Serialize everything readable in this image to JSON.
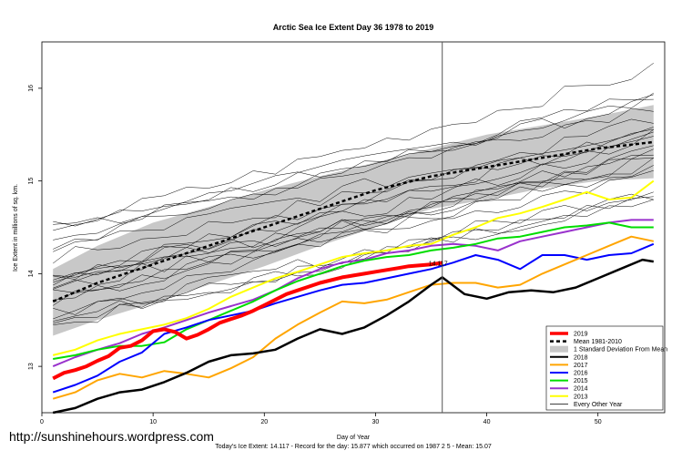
{
  "chart_data": {
    "type": "line",
    "title": "Arctic Sea Ice Extent Day 36 1978 to 2019",
    "xlabel": "Day of Year",
    "ylabel": "Ice Extent in millions of sq. km.",
    "xlim": [
      0,
      56
    ],
    "ylim": [
      12.5,
      16.5
    ],
    "xticks": [
      0,
      10,
      20,
      30,
      40,
      50
    ],
    "yticks": [
      13,
      14,
      15,
      16
    ],
    "current_day": 36,
    "current_value_label": "14.117",
    "legend_position": "bottom-right",
    "series": [
      {
        "name": "2019",
        "color": "#ff0000",
        "width": 4,
        "values": [
          [
            1,
            12.87
          ],
          [
            2,
            12.93
          ],
          [
            3,
            12.96
          ],
          [
            4,
            13.0
          ],
          [
            5,
            13.06
          ],
          [
            6,
            13.11
          ],
          [
            7,
            13.2
          ],
          [
            8,
            13.22
          ],
          [
            9,
            13.28
          ],
          [
            10,
            13.38
          ],
          [
            11,
            13.4
          ],
          [
            12,
            13.37
          ],
          [
            13,
            13.3
          ],
          [
            14,
            13.34
          ],
          [
            15,
            13.4
          ],
          [
            16,
            13.47
          ],
          [
            17,
            13.51
          ],
          [
            18,
            13.55
          ],
          [
            19,
            13.6
          ],
          [
            20,
            13.66
          ],
          [
            21,
            13.72
          ],
          [
            22,
            13.78
          ],
          [
            23,
            13.82
          ],
          [
            24,
            13.86
          ],
          [
            25,
            13.9
          ],
          [
            26,
            13.93
          ],
          [
            27,
            13.96
          ],
          [
            28,
            13.98
          ],
          [
            29,
            14.0
          ],
          [
            30,
            14.02
          ],
          [
            31,
            14.04
          ],
          [
            32,
            14.06
          ],
          [
            33,
            14.08
          ],
          [
            34,
            14.09
          ],
          [
            35,
            14.1
          ],
          [
            36,
            14.117
          ]
        ]
      },
      {
        "name": "Mean 1981-2010",
        "color": "#000000",
        "width": 2.5,
        "dash": "4 3",
        "values": [
          [
            1,
            13.7
          ],
          [
            5,
            13.9
          ],
          [
            10,
            14.1
          ],
          [
            15,
            14.3
          ],
          [
            20,
            14.5
          ],
          [
            25,
            14.7
          ],
          [
            30,
            14.9
          ],
          [
            35,
            15.05
          ],
          [
            40,
            15.15
          ],
          [
            45,
            15.25
          ],
          [
            50,
            15.35
          ],
          [
            55,
            15.42
          ]
        ]
      },
      {
        "name": "2018",
        "color": "#000000",
        "width": 2.5,
        "values": [
          [
            1,
            12.5
          ],
          [
            3,
            12.55
          ],
          [
            5,
            12.65
          ],
          [
            7,
            12.72
          ],
          [
            9,
            12.75
          ],
          [
            11,
            12.83
          ],
          [
            13,
            12.93
          ],
          [
            15,
            13.05
          ],
          [
            17,
            13.12
          ],
          [
            19,
            13.14
          ],
          [
            21,
            13.18
          ],
          [
            23,
            13.3
          ],
          [
            25,
            13.4
          ],
          [
            27,
            13.35
          ],
          [
            29,
            13.42
          ],
          [
            31,
            13.55
          ],
          [
            33,
            13.7
          ],
          [
            35,
            13.88
          ],
          [
            36,
            13.96
          ],
          [
            38,
            13.78
          ],
          [
            40,
            13.73
          ],
          [
            42,
            13.8
          ],
          [
            44,
            13.82
          ],
          [
            46,
            13.8
          ],
          [
            48,
            13.85
          ],
          [
            50,
            13.95
          ],
          [
            52,
            14.05
          ],
          [
            54,
            14.15
          ],
          [
            55,
            14.13
          ]
        ]
      },
      {
        "name": "2017",
        "color": "#ffa500",
        "width": 2,
        "values": [
          [
            1,
            12.65
          ],
          [
            3,
            12.72
          ],
          [
            5,
            12.85
          ],
          [
            7,
            12.92
          ],
          [
            9,
            12.88
          ],
          [
            11,
            12.95
          ],
          [
            13,
            12.92
          ],
          [
            15,
            12.88
          ],
          [
            17,
            12.98
          ],
          [
            19,
            13.1
          ],
          [
            21,
            13.3
          ],
          [
            23,
            13.45
          ],
          [
            25,
            13.58
          ],
          [
            27,
            13.7
          ],
          [
            29,
            13.68
          ],
          [
            31,
            13.72
          ],
          [
            33,
            13.8
          ],
          [
            35,
            13.88
          ],
          [
            37,
            13.9
          ],
          [
            39,
            13.9
          ],
          [
            41,
            13.85
          ],
          [
            43,
            13.88
          ],
          [
            45,
            14.0
          ],
          [
            47,
            14.1
          ],
          [
            49,
            14.2
          ],
          [
            51,
            14.3
          ],
          [
            53,
            14.4
          ],
          [
            55,
            14.35
          ]
        ]
      },
      {
        "name": "2016",
        "color": "#0000ff",
        "width": 2,
        "values": [
          [
            1,
            12.72
          ],
          [
            3,
            12.8
          ],
          [
            5,
            12.9
          ],
          [
            7,
            13.05
          ],
          [
            9,
            13.15
          ],
          [
            11,
            13.35
          ],
          [
            13,
            13.42
          ],
          [
            15,
            13.5
          ],
          [
            17,
            13.55
          ],
          [
            19,
            13.6
          ],
          [
            21,
            13.68
          ],
          [
            23,
            13.75
          ],
          [
            25,
            13.82
          ],
          [
            27,
            13.88
          ],
          [
            29,
            13.9
          ],
          [
            31,
            13.95
          ],
          [
            33,
            14.0
          ],
          [
            35,
            14.05
          ],
          [
            37,
            14.12
          ],
          [
            39,
            14.2
          ],
          [
            41,
            14.15
          ],
          [
            43,
            14.05
          ],
          [
            45,
            14.2
          ],
          [
            47,
            14.2
          ],
          [
            49,
            14.15
          ],
          [
            51,
            14.2
          ],
          [
            53,
            14.22
          ],
          [
            55,
            14.32
          ]
        ]
      },
      {
        "name": "2015",
        "color": "#00dd00",
        "width": 2,
        "values": [
          [
            1,
            13.08
          ],
          [
            3,
            13.12
          ],
          [
            5,
            13.18
          ],
          [
            7,
            13.22
          ],
          [
            9,
            13.22
          ],
          [
            11,
            13.26
          ],
          [
            13,
            13.4
          ],
          [
            15,
            13.5
          ],
          [
            17,
            13.6
          ],
          [
            19,
            13.7
          ],
          [
            21,
            13.82
          ],
          [
            23,
            13.92
          ],
          [
            25,
            14.0
          ],
          [
            27,
            14.08
          ],
          [
            29,
            14.14
          ],
          [
            31,
            14.18
          ],
          [
            33,
            14.2
          ],
          [
            35,
            14.25
          ],
          [
            37,
            14.28
          ],
          [
            39,
            14.32
          ],
          [
            41,
            14.38
          ],
          [
            43,
            14.4
          ],
          [
            45,
            14.45
          ],
          [
            47,
            14.5
          ],
          [
            49,
            14.52
          ],
          [
            51,
            14.55
          ],
          [
            53,
            14.5
          ],
          [
            55,
            14.5
          ]
        ]
      },
      {
        "name": "2014",
        "color": "#9932cc",
        "width": 2,
        "values": [
          [
            1,
            13.0
          ],
          [
            3,
            13.1
          ],
          [
            5,
            13.18
          ],
          [
            7,
            13.25
          ],
          [
            9,
            13.35
          ],
          [
            11,
            13.42
          ],
          [
            13,
            13.5
          ],
          [
            15,
            13.58
          ],
          [
            17,
            13.65
          ],
          [
            19,
            13.72
          ],
          [
            21,
            13.82
          ],
          [
            23,
            13.95
          ],
          [
            25,
            14.05
          ],
          [
            27,
            14.12
          ],
          [
            29,
            14.15
          ],
          [
            31,
            14.22
          ],
          [
            33,
            14.25
          ],
          [
            35,
            14.3
          ],
          [
            37,
            14.32
          ],
          [
            39,
            14.3
          ],
          [
            41,
            14.25
          ],
          [
            43,
            14.35
          ],
          [
            45,
            14.4
          ],
          [
            47,
            14.45
          ],
          [
            49,
            14.5
          ],
          [
            51,
            14.55
          ],
          [
            53,
            14.58
          ],
          [
            55,
            14.58
          ]
        ]
      },
      {
        "name": "2013",
        "color": "#ffff00",
        "width": 2,
        "values": [
          [
            1,
            13.12
          ],
          [
            3,
            13.18
          ],
          [
            5,
            13.28
          ],
          [
            7,
            13.35
          ],
          [
            9,
            13.4
          ],
          [
            11,
            13.45
          ],
          [
            13,
            13.52
          ],
          [
            15,
            13.62
          ],
          [
            17,
            13.75
          ],
          [
            19,
            13.85
          ],
          [
            21,
            13.95
          ],
          [
            23,
            14.02
          ],
          [
            25,
            14.1
          ],
          [
            27,
            14.18
          ],
          [
            29,
            14.22
          ],
          [
            31,
            14.25
          ],
          [
            33,
            14.3
          ],
          [
            35,
            14.32
          ],
          [
            37,
            14.42
          ],
          [
            39,
            14.5
          ],
          [
            41,
            14.6
          ],
          [
            43,
            14.65
          ],
          [
            45,
            14.72
          ],
          [
            47,
            14.8
          ],
          [
            49,
            14.88
          ],
          [
            51,
            14.8
          ],
          [
            53,
            14.82
          ],
          [
            55,
            15.0
          ]
        ]
      }
    ],
    "band": {
      "name": "1 Standard Deviation From Mean",
      "color": "#c8c8c8",
      "upper": [
        [
          1,
          14.05
        ],
        [
          5,
          14.3
        ],
        [
          10,
          14.55
        ],
        [
          15,
          14.72
        ],
        [
          20,
          14.9
        ],
        [
          25,
          15.05
        ],
        [
          30,
          15.2
        ],
        [
          35,
          15.35
        ],
        [
          40,
          15.5
        ],
        [
          45,
          15.6
        ],
        [
          50,
          15.7
        ],
        [
          55,
          15.82
        ]
      ],
      "lower": [
        [
          1,
          13.33
        ],
        [
          5,
          13.5
        ],
        [
          10,
          13.68
        ],
        [
          15,
          13.88
        ],
        [
          20,
          14.08
        ],
        [
          25,
          14.3
        ],
        [
          30,
          14.5
        ],
        [
          35,
          14.7
        ],
        [
          40,
          14.8
        ],
        [
          45,
          14.92
        ],
        [
          50,
          15.0
        ],
        [
          55,
          15.03
        ]
      ]
    },
    "legend": [
      {
        "label": "2019",
        "kind": "line",
        "color": "#ff0000"
      },
      {
        "label": "Mean 1981-2010",
        "kind": "dash",
        "color": "#000000"
      },
      {
        "label": "1 Standard Deviation From Mean",
        "kind": "box",
        "color": "#c8c8c8"
      },
      {
        "label": "2018",
        "kind": "line",
        "color": "#000000"
      },
      {
        "label": "2017",
        "kind": "line",
        "color": "#ffa500"
      },
      {
        "label": "2016",
        "kind": "line",
        "color": "#0000ff"
      },
      {
        "label": "2015",
        "kind": "line",
        "color": "#00dd00"
      },
      {
        "label": "2014",
        "kind": "line",
        "color": "#9932cc"
      },
      {
        "label": "2013",
        "kind": "line",
        "color": "#ffff00"
      },
      {
        "label": "Every Other Year",
        "kind": "thin",
        "color": "#000000"
      }
    ]
  },
  "footer": {
    "watermark": "http://sunshinehours.wordpress.com",
    "summary": "Today's Ice Extent: 14.117  - Record for the day: 15.877 which occurred on 1987 2 5  - Mean: 15.07"
  }
}
